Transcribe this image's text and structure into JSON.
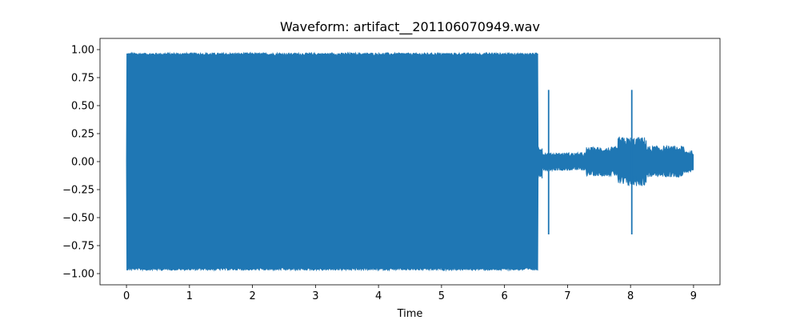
{
  "chart_data": {
    "type": "line",
    "title": "Waveform: artifact__201106070949.wav",
    "xlabel": "Time",
    "ylabel": "",
    "xlim": [
      -0.42,
      9.42
    ],
    "ylim": [
      -1.1,
      1.1
    ],
    "x_ticks": [
      0,
      1,
      2,
      3,
      4,
      5,
      6,
      7,
      8,
      9
    ],
    "y_ticks": [
      -1.0,
      -0.75,
      -0.5,
      -0.25,
      0.0,
      0.25,
      0.5,
      0.75,
      1.0
    ],
    "x_tick_labels": [
      "0",
      "1",
      "2",
      "3",
      "4",
      "5",
      "6",
      "7",
      "8",
      "9"
    ],
    "y_tick_labels": [
      "−1.00",
      "−0.75",
      "−0.50",
      "−0.25",
      "0.00",
      "0.25",
      "0.50",
      "0.75",
      "1.00"
    ],
    "grid": false,
    "series": [
      {
        "color": "#1f77b4",
        "duration_seconds": 9.0,
        "segments": [
          {
            "start": 0.0,
            "end": 6.53,
            "amplitude": 0.98
          },
          {
            "start": 6.53,
            "end": 6.6,
            "amplitude": 0.15
          },
          {
            "start": 6.6,
            "end": 7.3,
            "amplitude": 0.08
          },
          {
            "start": 7.3,
            "end": 7.8,
            "amplitude": 0.13
          },
          {
            "start": 7.8,
            "end": 8.25,
            "amplitude": 0.22
          },
          {
            "start": 8.25,
            "end": 8.85,
            "amplitude": 0.14
          },
          {
            "start": 8.85,
            "end": 9.0,
            "amplitude": 0.1
          }
        ],
        "spikes": [
          {
            "x": 6.7,
            "min": -0.65,
            "max": 0.64
          },
          {
            "x": 8.02,
            "min": -0.65,
            "max": 0.64
          }
        ]
      }
    ]
  }
}
